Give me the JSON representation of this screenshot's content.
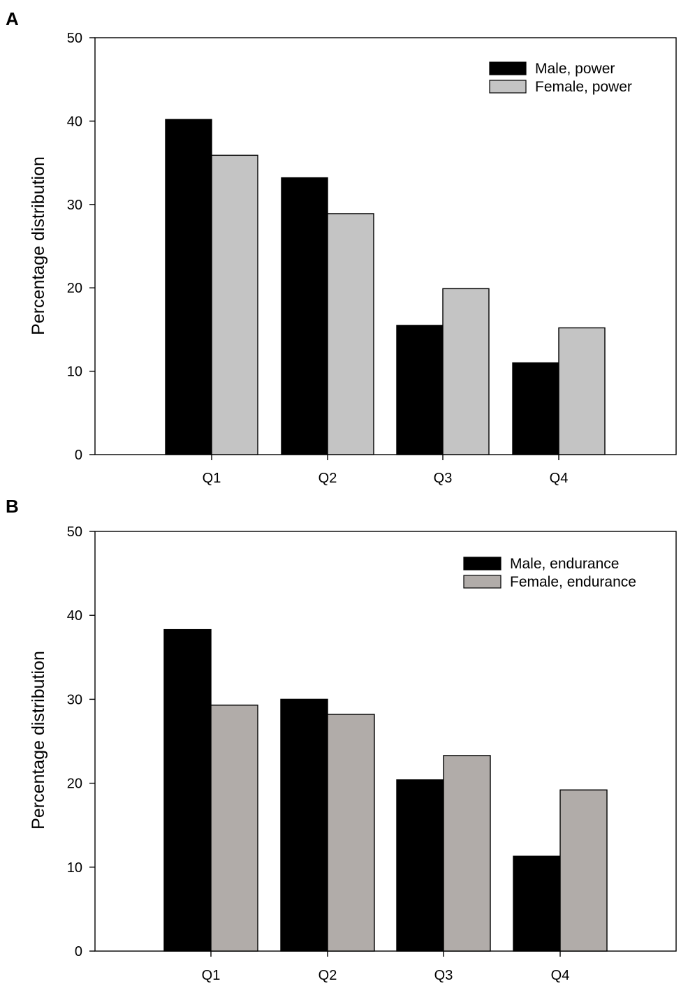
{
  "chart_data": [
    {
      "type": "bar",
      "panel": "A",
      "categories": [
        "Q1",
        "Q2",
        "Q3",
        "Q4"
      ],
      "series": [
        {
          "name": "Male, power",
          "color": "#000000",
          "values": [
            40.2,
            33.2,
            15.5,
            11.0
          ]
        },
        {
          "name": "Female, power",
          "color": "#c4c4c4",
          "values": [
            35.9,
            28.9,
            19.9,
            15.2
          ]
        }
      ],
      "xlabel": "",
      "ylabel": "Percentage distribution",
      "ylim": [
        0,
        50
      ],
      "yticks": [
        "0",
        "10",
        "20",
        "30",
        "40",
        "50"
      ],
      "legend_position": "top-right",
      "grid": false
    },
    {
      "type": "bar",
      "panel": "B",
      "categories": [
        "Q1",
        "Q2",
        "Q3",
        "Q4"
      ],
      "series": [
        {
          "name": "Male, endurance",
          "color": "#000000",
          "values": [
            38.3,
            30.0,
            20.4,
            11.3
          ]
        },
        {
          "name": "Female, endurance",
          "color": "#b1aca9",
          "values": [
            29.3,
            28.2,
            23.3,
            19.2
          ]
        }
      ],
      "xlabel": "",
      "ylabel": "Percentage distribution",
      "ylim": [
        0,
        50
      ],
      "yticks": [
        "0",
        "10",
        "20",
        "30",
        "40",
        "50"
      ],
      "legend_position": "top-right",
      "grid": false
    }
  ]
}
